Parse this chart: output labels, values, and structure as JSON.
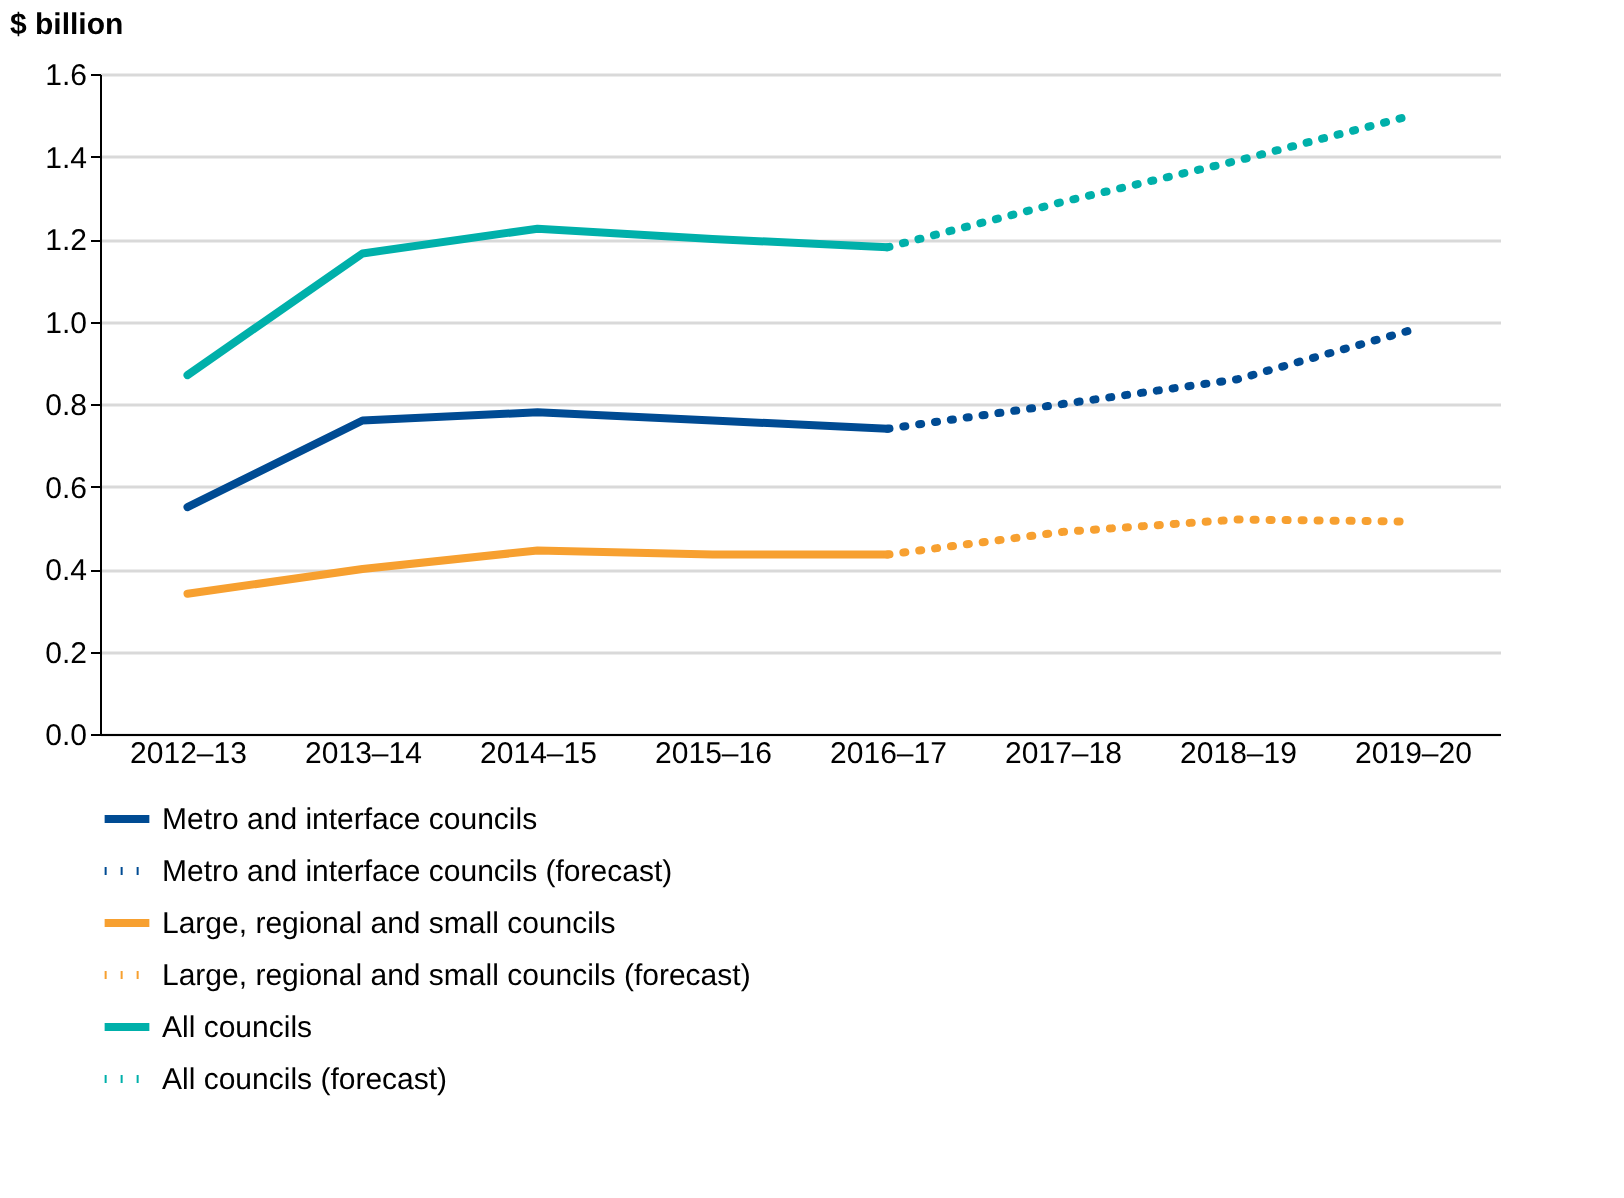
{
  "chart_data": {
    "type": "line",
    "ylabel": "$ billion",
    "categories": [
      "2012–13",
      "2013–14",
      "2014–15",
      "2015–16",
      "2016–17",
      "2017–18",
      "2018–19",
      "2019–20"
    ],
    "ylim": [
      0,
      1.6
    ],
    "yticks": [
      {
        "value": 0,
        "label": "0.0"
      },
      0.2,
      0.4,
      0.6,
      0.8,
      {
        "value": 1,
        "label": "1.0"
      },
      1.2,
      1.4,
      1.6
    ],
    "grid": "y",
    "legend": "bottom",
    "marker": "none",
    "series": [
      {
        "name": "Metro and interface councils",
        "color": "#004b93",
        "line_style": "solid",
        "values": [
          0.55,
          0.76,
          0.78,
          0.76,
          0.74,
          null,
          null,
          null
        ]
      },
      {
        "name": "Metro and interface councils (forecast)",
        "color": "#004b93",
        "line_style": "dotted",
        "values": [
          null,
          null,
          null,
          null,
          0.74,
          0.8,
          0.86,
          0.98
        ]
      },
      {
        "name": "Large, regional and small councils",
        "color": "#f7a030",
        "line_style": "solid",
        "values": [
          0.34,
          0.4,
          0.445,
          0.435,
          0.435,
          null,
          null,
          null
        ]
      },
      {
        "name": "Large, regional and small councils (forecast)",
        "color": "#f7a030",
        "line_style": "dotted",
        "values": [
          null,
          null,
          null,
          null,
          0.435,
          0.49,
          0.52,
          0.515
        ]
      },
      {
        "name": "All councils",
        "color": "#00b0aa",
        "line_style": "solid",
        "values": [
          0.87,
          1.165,
          1.225,
          1.2,
          1.18,
          null,
          null,
          null
        ]
      },
      {
        "name": "All councils (forecast)",
        "color": "#00b0aa",
        "line_style": "dotted",
        "values": [
          null,
          null,
          null,
          null,
          1.18,
          1.29,
          1.39,
          1.5
        ]
      }
    ]
  }
}
